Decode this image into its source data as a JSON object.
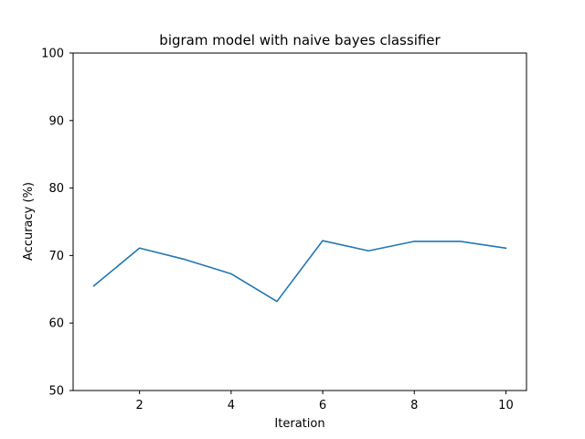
{
  "chart_data": {
    "type": "line",
    "title": "bigram model with naive bayes classifier",
    "xlabel": "Iteration",
    "ylabel": "Accuracy (%)",
    "x": [
      1,
      2,
      3,
      4,
      5,
      6,
      7,
      8,
      9,
      10
    ],
    "series": [
      {
        "values": [
          65.5,
          71.1,
          69.4,
          67.3,
          63.2,
          72.2,
          70.7,
          72.1,
          72.1,
          71.1
        ],
        "color": "#1f77b4"
      }
    ],
    "xlim": [
      0.55,
      10.45
    ],
    "ylim": [
      50,
      100
    ],
    "xticks": [
      2,
      4,
      6,
      8,
      10
    ],
    "yticks": [
      50,
      60,
      70,
      80,
      90,
      100
    ],
    "grid": false,
    "legend": "none"
  }
}
